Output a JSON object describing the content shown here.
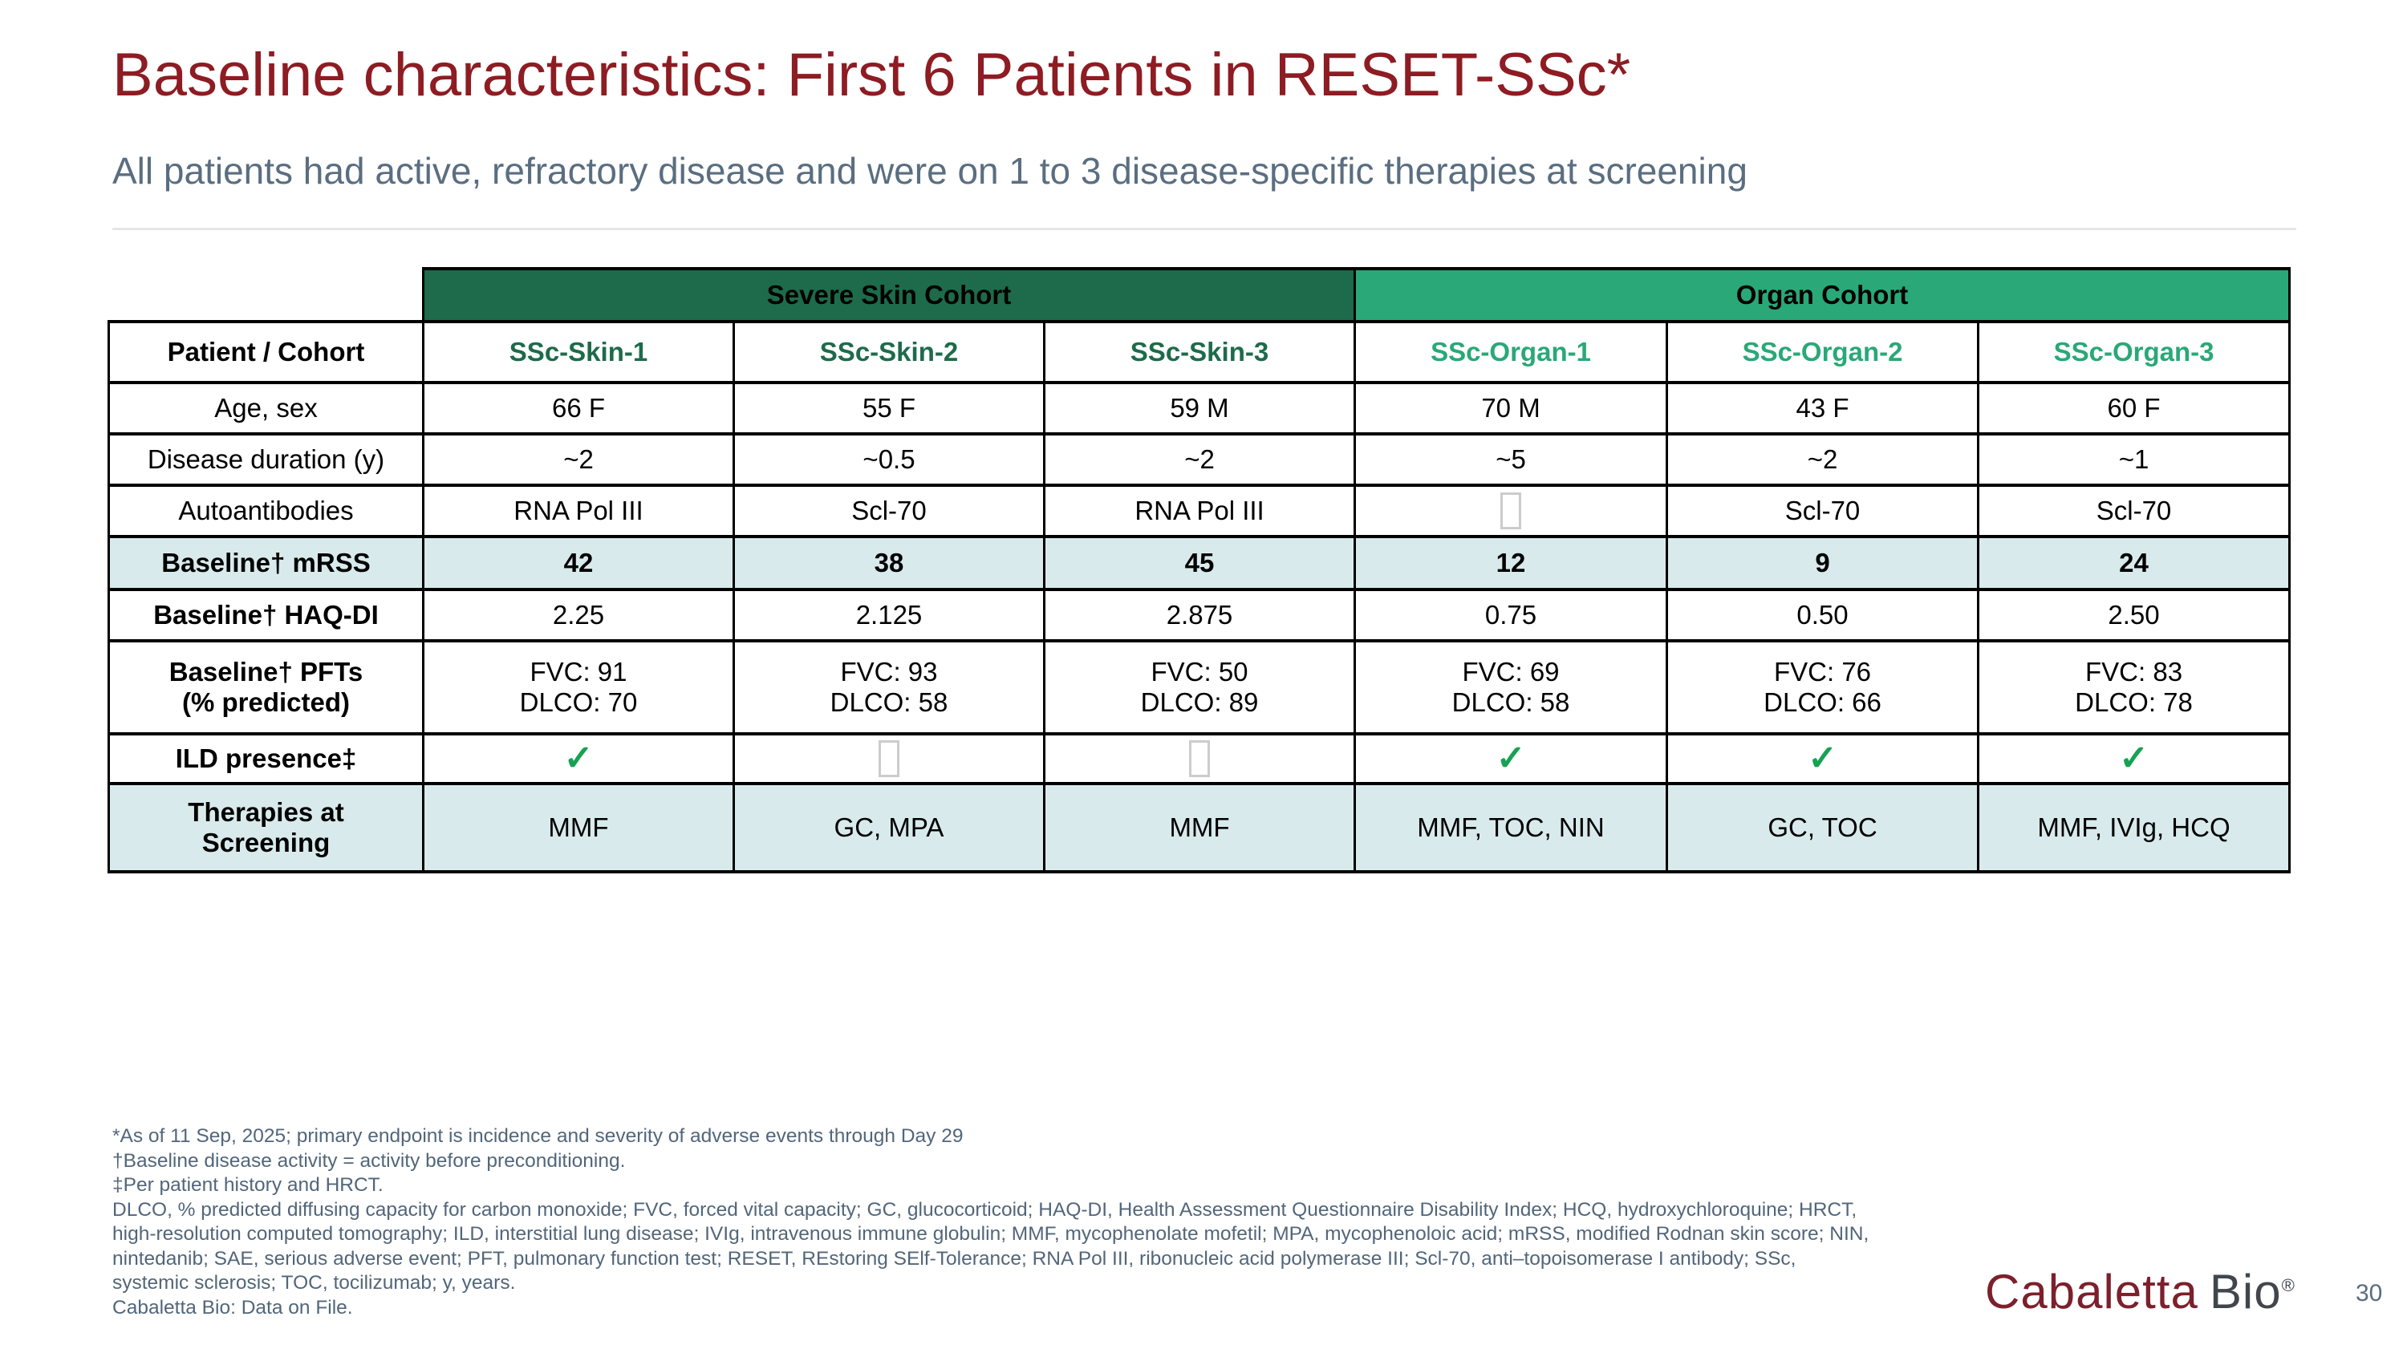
{
  "slide": {
    "title": "Baseline characteristics: First 6 Patients in RESET-SSc*",
    "subtitle": "All patients had active, refractory disease and were on 1 to 3 disease-specific therapies at screening",
    "page_number": "30",
    "logo": {
      "brand": "Cabaletta",
      "suffix": "Bio",
      "registered": "®"
    }
  },
  "colors": {
    "title_maroon": "#8e1c23",
    "subtitle_gray_blue": "#5a6e80",
    "severe_skin_green": "#1d6b4a",
    "organ_green": "#2aa878",
    "shaded_row_teal": "#d8eaec",
    "check_green": "#17a253",
    "missing_glyph_gray": "#cccccc"
  },
  "symbols": {
    "check": "✓"
  },
  "table": {
    "cohort_bands": [
      {
        "label": "Severe Skin Cohort",
        "color": "#1d6b4a"
      },
      {
        "label": "Organ Cohort",
        "color": "#2aa878"
      }
    ],
    "header": {
      "label": "Patient / Cohort",
      "columns": [
        {
          "label": "SSc-Skin-1",
          "color": "#1d6b4a"
        },
        {
          "label": "SSc-Skin-2",
          "color": "#1d6b4a"
        },
        {
          "label": "SSc-Skin-3",
          "color": "#1d6b4a"
        },
        {
          "label": "SSc-Organ-1",
          "color": "#2aa878"
        },
        {
          "label": "SSc-Organ-2",
          "color": "#2aa878"
        },
        {
          "label": "SSc-Organ-3",
          "color": "#2aa878"
        }
      ]
    },
    "rows": [
      {
        "label": "Age, sex",
        "bold_label": false,
        "shaded": false,
        "height": 64,
        "cells": [
          "66 F",
          "55 F",
          "59 M",
          "70 M",
          "43 F",
          "60 F"
        ]
      },
      {
        "label": "Disease duration (y)",
        "bold_label": false,
        "shaded": false,
        "height": 64,
        "cells": [
          "~2",
          "~0.5",
          "~2",
          "~5",
          "~2",
          "~1"
        ]
      },
      {
        "label": "Autoantibodies",
        "bold_label": false,
        "shaded": false,
        "height": 64,
        "cells": [
          "RNA Pol III",
          "Scl-70",
          "RNA Pol III",
          {
            "type": "missing-glyph"
          },
          "Scl-70",
          "Scl-70"
        ]
      },
      {
        "label": "Baseline† mRSS",
        "bold_label": true,
        "shaded": true,
        "bold_values": true,
        "height": 66,
        "cells": [
          "42",
          "38",
          "45",
          "12",
          "9",
          "24"
        ]
      },
      {
        "label": "Baseline† HAQ-DI",
        "bold_label": true,
        "shaded": false,
        "height": 64,
        "cells": [
          "2.25",
          "2.125",
          "2.875",
          "0.75",
          "0.50",
          "2.50"
        ]
      },
      {
        "label": "Baseline† PFTs\n(% predicted)",
        "bold_label": true,
        "shaded": false,
        "height": 116,
        "cells": [
          "FVC: 91\nDLCO: 70",
          "FVC: 93\nDLCO: 58",
          "FVC: 50\nDLCO: 89",
          "FVC: 69\nDLCO: 58",
          "FVC: 76\nDLCO: 66",
          "FVC: 83\nDLCO: 78"
        ]
      },
      {
        "label": "ILD presence‡",
        "bold_label": true,
        "shaded": false,
        "height": 62,
        "cells": [
          {
            "type": "check"
          },
          {
            "type": "missing-glyph"
          },
          {
            "type": "missing-glyph"
          },
          {
            "type": "check"
          },
          {
            "type": "check"
          },
          {
            "type": "check"
          }
        ]
      },
      {
        "label": "Therapies at\nScreening",
        "bold_label": true,
        "shaded": true,
        "height": 110,
        "cells": [
          "MMF",
          "GC, MPA",
          "MMF",
          "MMF, TOC, NIN",
          "GC, TOC",
          "MMF, IVIg, HCQ"
        ]
      }
    ]
  },
  "footnotes": [
    "*As of 11 Sep, 2025; primary endpoint is incidence and severity of adverse events through Day 29",
    "†Baseline disease activity = activity before preconditioning.",
    "‡Per patient history and HRCT.",
    "DLCO, % predicted diffusing capacity for carbon monoxide; FVC, forced vital capacity; GC, glucocorticoid; HAQ-DI, Health Assessment Questionnaire Disability Index; HCQ, hydroxychloroquine; HRCT,",
    "high-resolution computed tomography; ILD, interstitial lung disease; IVIg, intravenous immune globulin; MMF, mycophenolate mofetil; MPA, mycophenoloic acid; mRSS, modified Rodnan skin score; NIN,",
    "nintedanib; SAE, serious adverse event; PFT, pulmonary function test;  RESET, REstoring SElf-Tolerance; RNA Pol III, ribonucleic acid polymerase III; Scl-70, anti–topoisomerase I antibody; SSc,",
    "systemic sclerosis; TOC, tocilizumab; y, years.",
    "Cabaletta Bio: Data on File."
  ]
}
